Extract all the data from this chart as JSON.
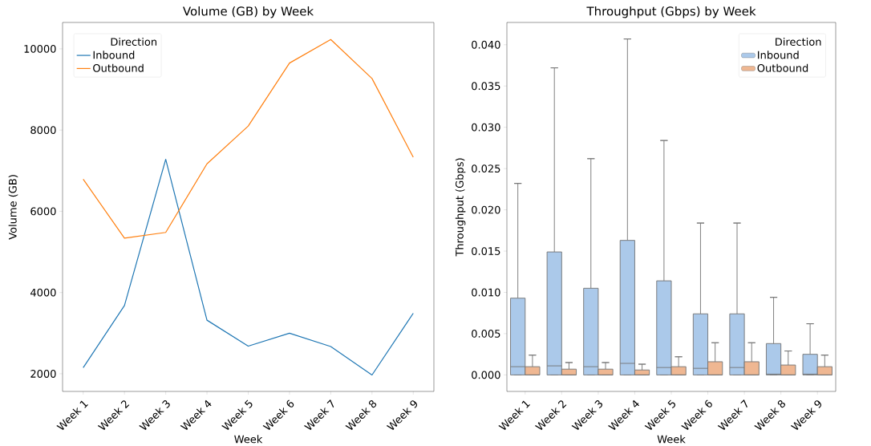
{
  "chart_data": [
    {
      "type": "line",
      "title": "Volume (GB) by Week",
      "xlabel": "Week",
      "ylabel": "Volume (GB)",
      "legend_title": "Direction",
      "legend": "top left",
      "categories": [
        "Week 1",
        "Week 2",
        "Week 3",
        "Week 4",
        "Week 5",
        "Week 6",
        "Week 7",
        "Week 8",
        "Week 9"
      ],
      "series": [
        {
          "name": "Inbound",
          "color": "#1f77b4",
          "values": [
            2150,
            3680,
            7280,
            3320,
            2680,
            3000,
            2670,
            1970,
            3490
          ]
        },
        {
          "name": "Outbound",
          "color": "#ff7f0e",
          "values": [
            6790,
            5340,
            5480,
            7170,
            8100,
            9650,
            10230,
            9270,
            7330
          ]
        }
      ],
      "ylim": [
        1565,
        10650
      ],
      "yticks": [
        2000,
        4000,
        6000,
        8000,
        10000
      ]
    },
    {
      "type": "box",
      "title": "Throughput (Gbps) by Week",
      "xlabel": "Week",
      "ylabel": "Throughput (Gbps)",
      "legend_title": "Direction",
      "legend": "top right",
      "categories": [
        "Week 1",
        "Week 2",
        "Week 3",
        "Week 4",
        "Week 5",
        "Week 6",
        "Week 7",
        "Week 8",
        "Week 9"
      ],
      "series": [
        {
          "name": "Inbound",
          "color": "#abc9ea",
          "boxes": [
            {
              "low": 0,
              "q1": 0,
              "median": 0.001,
              "q3": 0.0093,
              "high": 0.0232
            },
            {
              "low": 0,
              "q1": 0,
              "median": 0.0011,
              "q3": 0.0149,
              "high": 0.0372
            },
            {
              "low": 0,
              "q1": 0,
              "median": 0.001,
              "q3": 0.0105,
              "high": 0.0262
            },
            {
              "low": 0,
              "q1": 0,
              "median": 0.0014,
              "q3": 0.0163,
              "high": 0.0407
            },
            {
              "low": 0,
              "q1": 0,
              "median": 0.0009,
              "q3": 0.0114,
              "high": 0.0284
            },
            {
              "low": 0,
              "q1": 0,
              "median": 0.0008,
              "q3": 0.0074,
              "high": 0.0184
            },
            {
              "low": 0,
              "q1": 0,
              "median": 0.0009,
              "q3": 0.0074,
              "high": 0.0184
            },
            {
              "low": 0,
              "q1": 0,
              "median": 0.0001,
              "q3": 0.0038,
              "high": 0.0094
            },
            {
              "low": 0,
              "q1": 0,
              "median": 0.0001,
              "q3": 0.0025,
              "high": 0.0062
            }
          ]
        },
        {
          "name": "Outbound",
          "color": "#efb792",
          "boxes": [
            {
              "low": 0,
              "q1": 0,
              "median": 0,
              "q3": 0.001,
              "high": 0.0024
            },
            {
              "low": 0,
              "q1": 0,
              "median": 0,
              "q3": 0.0007,
              "high": 0.0015
            },
            {
              "low": 0,
              "q1": 0,
              "median": 0,
              "q3": 0.0007,
              "high": 0.0015
            },
            {
              "low": 0,
              "q1": 0,
              "median": 0,
              "q3": 0.0006,
              "high": 0.0013
            },
            {
              "low": 0,
              "q1": 0,
              "median": 0,
              "q3": 0.001,
              "high": 0.0022
            },
            {
              "low": 0,
              "q1": 0,
              "median": 0,
              "q3": 0.0016,
              "high": 0.0039
            },
            {
              "low": 0,
              "q1": 0,
              "median": 0,
              "q3": 0.0016,
              "high": 0.0039
            },
            {
              "low": 0,
              "q1": 0,
              "median": 0,
              "q3": 0.0012,
              "high": 0.0029
            },
            {
              "low": 0,
              "q1": 0,
              "median": 0,
              "q3": 0.001,
              "high": 0.0024
            }
          ]
        }
      ],
      "ylim": [
        -0.002,
        0.0427
      ],
      "yticks": [
        {
          "value": 0,
          "label": "0.000"
        },
        {
          "value": 0.005,
          "label": "0.005"
        },
        {
          "value": 0.01,
          "label": "0.010"
        },
        {
          "value": 0.015,
          "label": "0.015"
        },
        {
          "value": 0.02,
          "label": "0.020"
        },
        {
          "value": 0.025,
          "label": "0.025"
        },
        {
          "value": 0.03,
          "label": "0.030"
        },
        {
          "value": 0.035,
          "label": "0.035"
        },
        {
          "value": 0.04,
          "label": "0.040"
        }
      ]
    }
  ]
}
